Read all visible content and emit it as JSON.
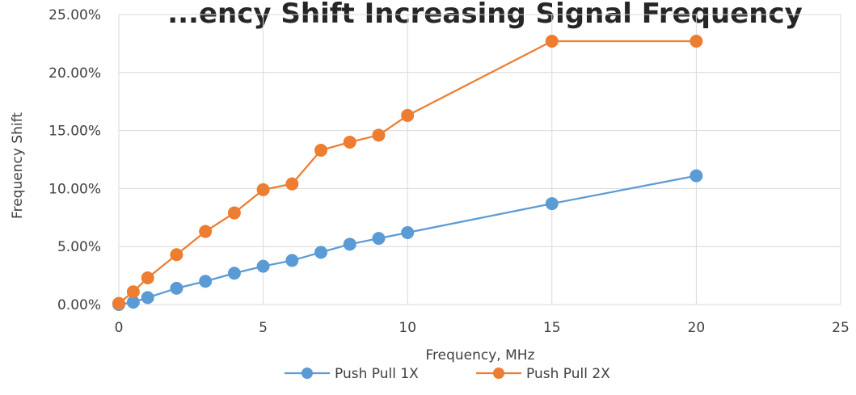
{
  "chart_data": {
    "type": "line",
    "title": "...ency Shift Increasing Signal Frequency",
    "xlabel": "Frequency, MHz",
    "ylabel": "Frequency Shift",
    "xlim": [
      0,
      25
    ],
    "ylim": [
      0,
      0.25
    ],
    "x_ticks": [
      0,
      5,
      10,
      15,
      20,
      25
    ],
    "y_ticks": [
      0,
      0.05,
      0.1,
      0.15,
      0.2,
      0.25
    ],
    "x_tick_labels": [
      "0",
      "5",
      "10",
      "15",
      "20",
      "25"
    ],
    "y_tick_labels": [
      "0.00%",
      "5.00%",
      "10.00%",
      "15.00%",
      "20.00%",
      "25.00%"
    ],
    "grid": true,
    "legend_position": "bottom",
    "series": [
      {
        "name": "Push Pull 1X",
        "color": "#5B9BD5",
        "points": [
          {
            "x": 0,
            "y": 0.0
          },
          {
            "x": 0.5,
            "y": 0.002
          },
          {
            "x": 1,
            "y": 0.006
          },
          {
            "x": 2,
            "y": 0.014
          },
          {
            "x": 3,
            "y": 0.02
          },
          {
            "x": 4,
            "y": 0.027
          },
          {
            "x": 5,
            "y": 0.033
          },
          {
            "x": 6,
            "y": 0.038
          },
          {
            "x": 7,
            "y": 0.045
          },
          {
            "x": 8,
            "y": 0.052
          },
          {
            "x": 9,
            "y": 0.057
          },
          {
            "x": 10,
            "y": 0.062
          },
          {
            "x": 15,
            "y": 0.087
          },
          {
            "x": 20,
            "y": 0.111
          }
        ]
      },
      {
        "name": "Push Pull 2X",
        "color": "#ED7D31",
        "points": [
          {
            "x": 0,
            "y": 0.001
          },
          {
            "x": 0.5,
            "y": 0.011
          },
          {
            "x": 1,
            "y": 0.023
          },
          {
            "x": 2,
            "y": 0.043
          },
          {
            "x": 3,
            "y": 0.063
          },
          {
            "x": 4,
            "y": 0.079
          },
          {
            "x": 5,
            "y": 0.099
          },
          {
            "x": 6,
            "y": 0.104
          },
          {
            "x": 7,
            "y": 0.133
          },
          {
            "x": 8,
            "y": 0.14
          },
          {
            "x": 9,
            "y": 0.146
          },
          {
            "x": 10,
            "y": 0.163
          },
          {
            "x": 15,
            "y": 0.227
          },
          {
            "x": 20,
            "y": 0.227
          }
        ]
      }
    ]
  }
}
